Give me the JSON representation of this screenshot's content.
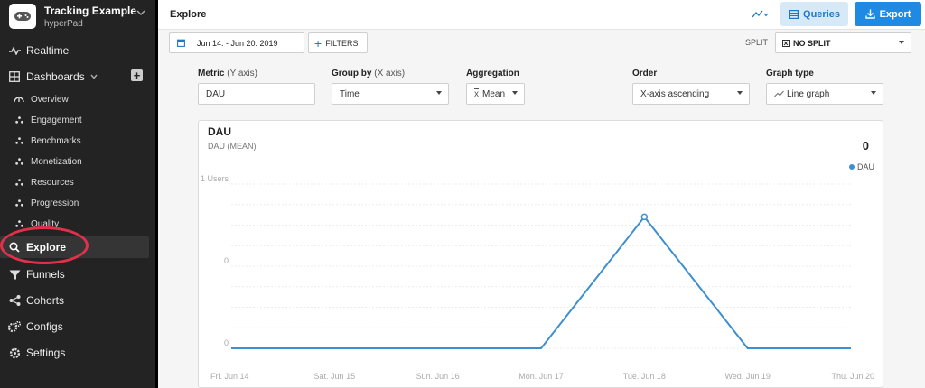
{
  "app": {
    "title": "Tracking Example",
    "subtitle": "hyperPad"
  },
  "sidebar": {
    "items": [
      {
        "label": "Realtime",
        "icon": "pulse-icon"
      },
      {
        "label": "Dashboards",
        "icon": "grid-icon"
      },
      {
        "label": "Overview",
        "icon": "gauge-icon"
      },
      {
        "label": "Engagement",
        "icon": "dots-icon"
      },
      {
        "label": "Benchmarks",
        "icon": "dots-icon"
      },
      {
        "label": "Monetization",
        "icon": "dots-icon"
      },
      {
        "label": "Resources",
        "icon": "dots-icon"
      },
      {
        "label": "Progression",
        "icon": "dots-icon"
      },
      {
        "label": "Quality",
        "icon": "dots-icon"
      },
      {
        "label": "Explore",
        "icon": "search-icon"
      },
      {
        "label": "Funnels",
        "icon": "funnel-icon"
      },
      {
        "label": "Cohorts",
        "icon": "share-icon"
      },
      {
        "label": "Configs",
        "icon": "gears-icon"
      },
      {
        "label": "Settings",
        "icon": "gear-icon"
      }
    ]
  },
  "header": {
    "title": "Explore",
    "queries_label": "Queries",
    "export_label": "Export"
  },
  "toolbar": {
    "date_range": "Jun 14. - Jun 20. 2019",
    "filters_label": "FILTERS",
    "split_label": "SPLIT",
    "split_value": "NO SPLIT"
  },
  "controls": {
    "metric": {
      "label": "Metric",
      "hint": "(Y axis)",
      "value": "DAU"
    },
    "group_by": {
      "label": "Group by",
      "hint": "(X axis)",
      "value": "Time"
    },
    "aggregation": {
      "label": "Aggregation",
      "value": "Mean"
    },
    "order": {
      "label": "Order",
      "value": "X-axis ascending"
    },
    "graph_type": {
      "label": "Graph type",
      "value": "Line graph"
    }
  },
  "panel": {
    "title": "DAU",
    "subtitle": "DAU (MEAN)",
    "total": "0"
  },
  "colors": {
    "accent": "#1f8ae3",
    "line": "#3d8fd1",
    "sidebar": "#232323",
    "annotation": "#e0314a"
  },
  "chart_data": {
    "type": "line",
    "categories": [
      "Fri. Jun 14",
      "Sat. Jun 15",
      "Sun. Jun 16",
      "Mon. Jun 17",
      "Tue. Jun 18",
      "Wed. Jun 19",
      "Thu. Jun 20"
    ],
    "series": [
      {
        "name": "DAU",
        "values": [
          0,
          0,
          0,
          0,
          0.8,
          0,
          0
        ]
      }
    ],
    "y_tick_labels": [
      "0",
      "0",
      "1 Users"
    ],
    "y_tick_values": [
      0,
      0.5,
      1
    ],
    "ylim": [
      0,
      1
    ],
    "legend": "top-right",
    "grid": true
  }
}
